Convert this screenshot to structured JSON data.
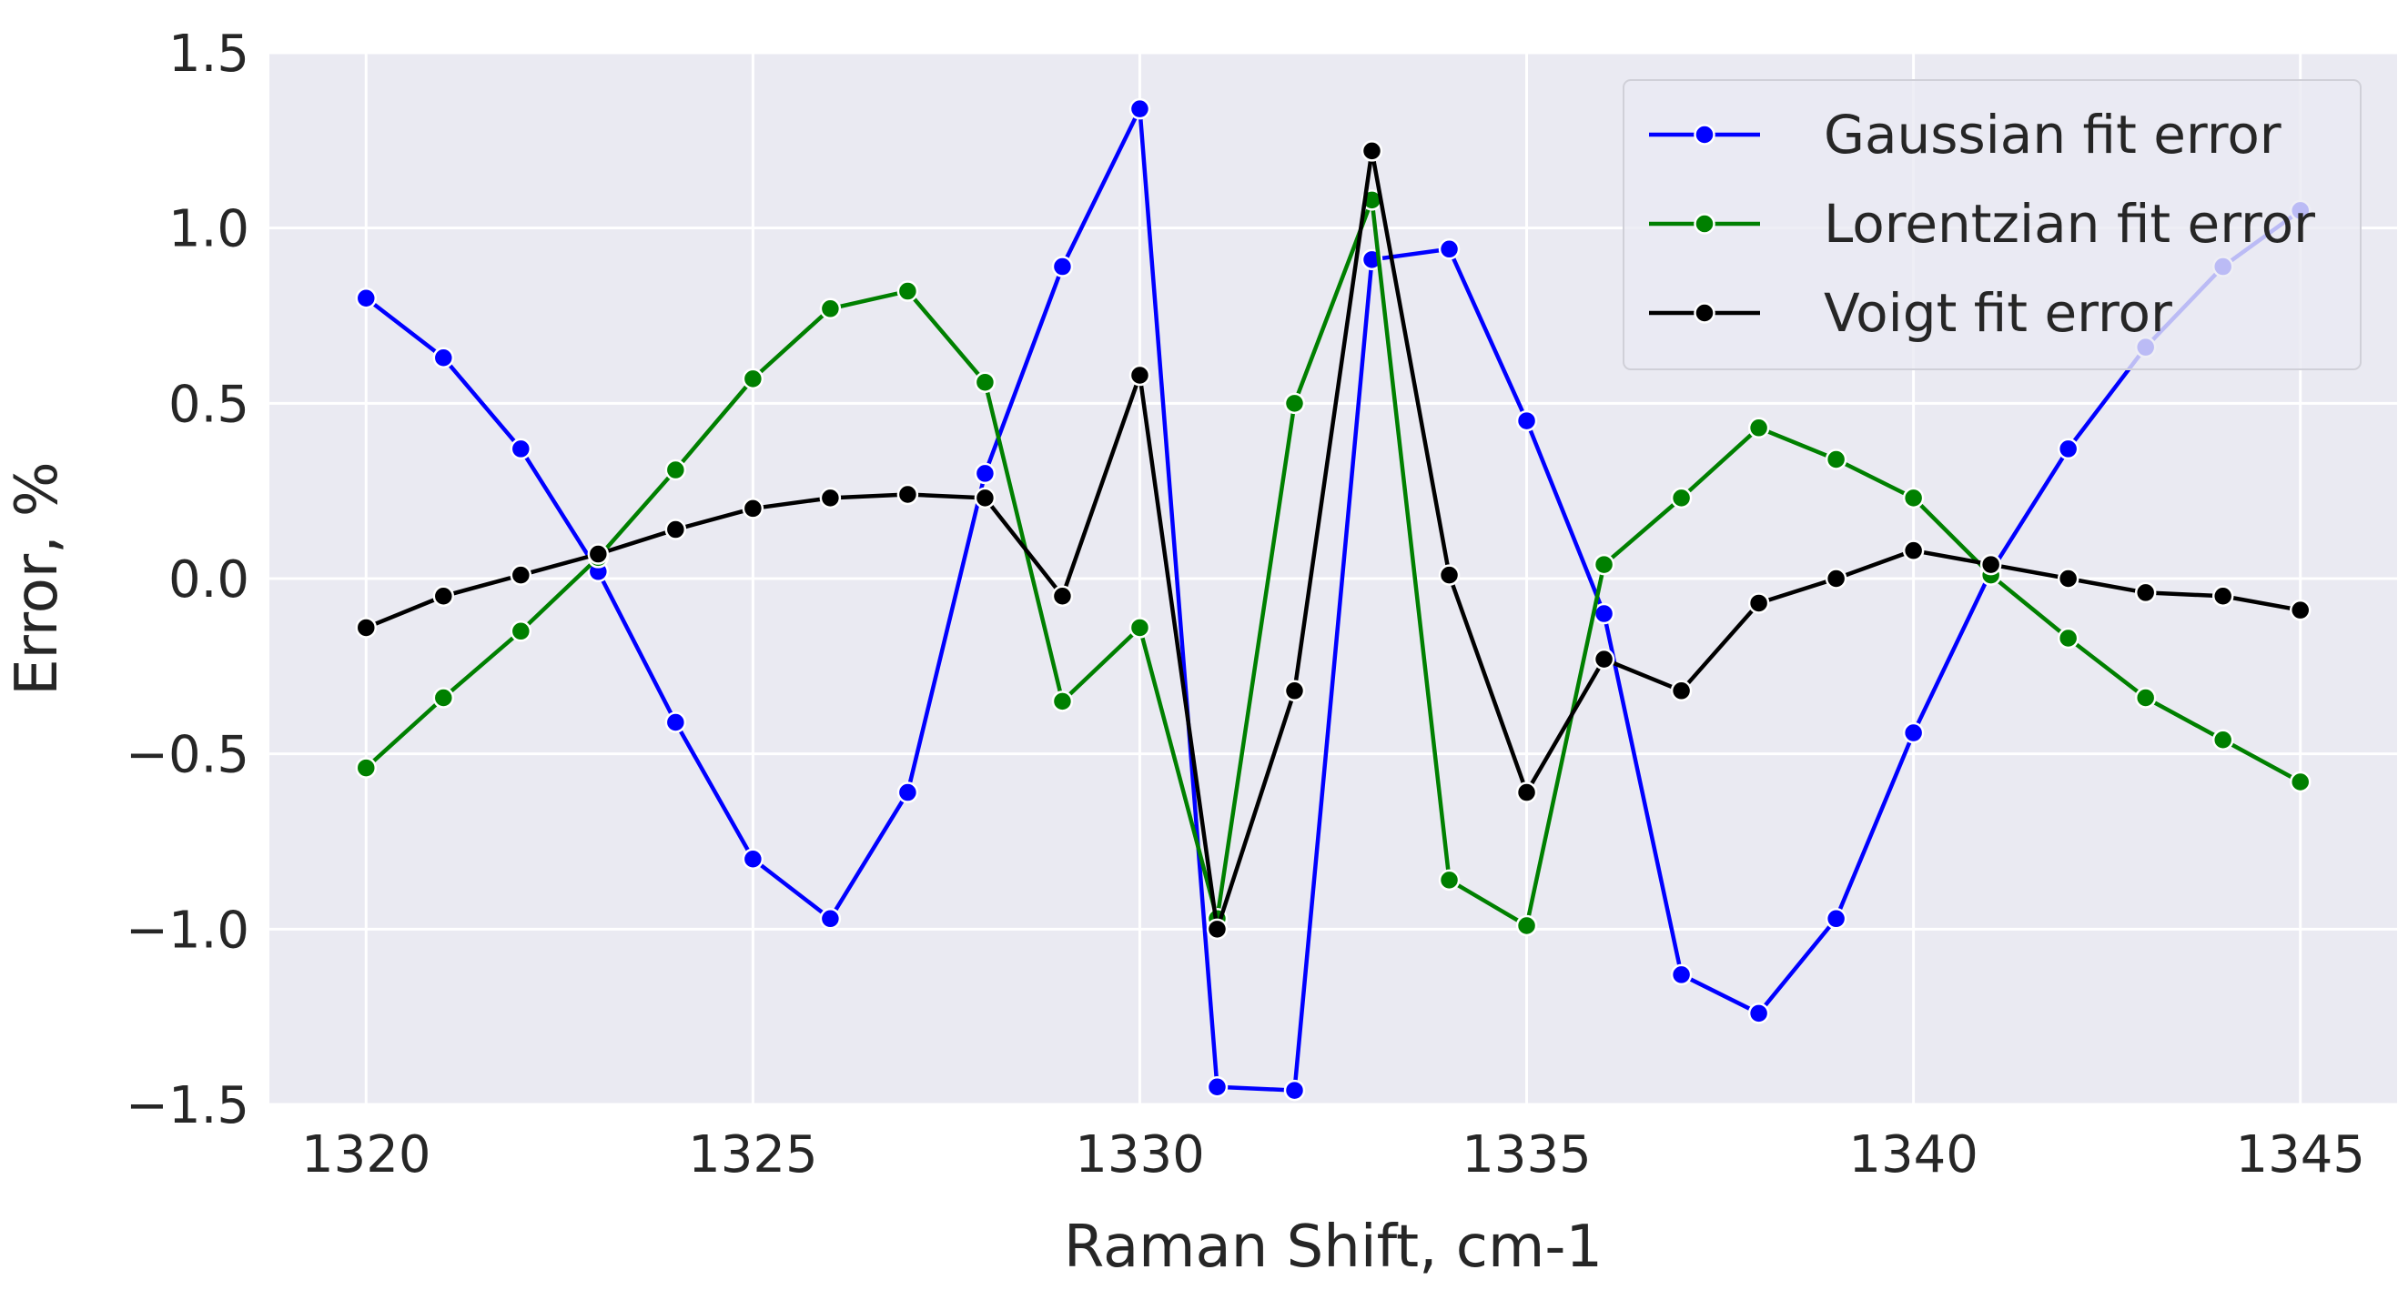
{
  "chart_data": {
    "type": "line",
    "xlabel": "Raman Shift, cm-1",
    "ylabel": "Error, %",
    "xlim": [
      1318.75,
      1346.25
    ],
    "ylim": [
      -1.5,
      1.5
    ],
    "xticks": [
      1320,
      1325,
      1330,
      1335,
      1340,
      1345
    ],
    "xtick_labels": [
      "1320",
      "1325",
      "1330",
      "1335",
      "1340",
      "1345"
    ],
    "yticks": [
      -1.5,
      -1.0,
      -0.5,
      0.0,
      0.5,
      1.0,
      1.5
    ],
    "ytick_labels": [
      "−1.5",
      "−1.0",
      "−0.5",
      "0.0",
      "0.5",
      "1.0",
      "1.5"
    ],
    "grid": true,
    "background": "#eaeaf2",
    "legend_position": "top-right",
    "x": [
      1320,
      1321,
      1322,
      1323,
      1324,
      1325,
      1326,
      1327,
      1328,
      1329,
      1330,
      1331,
      1332,
      1333,
      1334,
      1335,
      1336,
      1337,
      1338,
      1339,
      1340,
      1341,
      1342,
      1343,
      1344,
      1345
    ],
    "series": [
      {
        "name": "Gaussian fit error",
        "color": "#0000ff",
        "values": [
          0.8,
          0.63,
          0.37,
          0.02,
          -0.41,
          -0.8,
          -0.97,
          -0.61,
          0.3,
          0.89,
          1.34,
          -1.45,
          -1.46,
          0.91,
          0.94,
          0.45,
          -0.1,
          -1.13,
          -1.24,
          -0.97,
          -0.44,
          0.02,
          0.37,
          0.66,
          0.89,
          1.05
        ]
      },
      {
        "name": "Lorentzian fit error",
        "color": "#008000",
        "values": [
          -0.54,
          -0.34,
          -0.15,
          0.06,
          0.31,
          0.57,
          0.77,
          0.82,
          0.56,
          -0.35,
          -0.14,
          -0.97,
          0.5,
          1.08,
          -0.86,
          -0.99,
          0.04,
          0.23,
          0.43,
          0.34,
          0.23,
          0.01,
          -0.17,
          -0.34,
          -0.46,
          -0.58
        ]
      },
      {
        "name": "Voigt fit error",
        "color": "#000000",
        "values": [
          -0.14,
          -0.05,
          0.01,
          0.07,
          0.14,
          0.2,
          0.23,
          0.24,
          0.23,
          -0.05,
          0.58,
          -1.0,
          -0.32,
          1.22,
          0.01,
          -0.61,
          -0.23,
          -0.32,
          -0.07,
          0.0,
          0.08,
          0.04,
          0.0,
          -0.04,
          -0.05,
          -0.09
        ]
      }
    ]
  }
}
